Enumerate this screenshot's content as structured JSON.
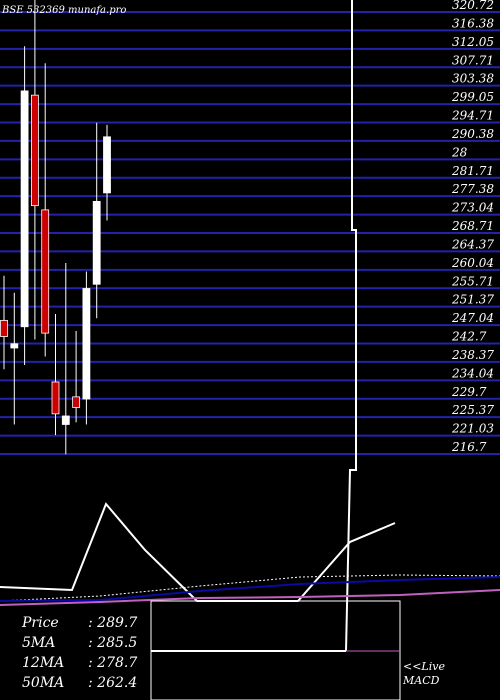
{
  "chart_data": [
    {
      "type": "candlestick",
      "title": "BSE 532369 munafa.pro",
      "price_levels": [
        "320.72",
        "316.38",
        "312.05",
        "307.71",
        "303.38",
        "299.05",
        "294.71",
        "290.38",
        "28",
        "281.71",
        "277.38",
        "273.04",
        "268.71",
        "264.37",
        "260.04",
        "255.71",
        "251.37",
        "247.04",
        "242.7",
        "238.37",
        "234.04",
        "229.7",
        "225.37",
        "221.03",
        "216.7"
      ],
      "ylim": [
        216.7,
        320.72
      ],
      "candles": [
        {
          "open": 242.7,
          "close": 246.5,
          "high": 257.0,
          "low": 235.0,
          "color": "red"
        },
        {
          "open": 241.0,
          "close": 240.0,
          "high": 253.0,
          "low": 222.0,
          "color": "white"
        },
        {
          "open": 245.0,
          "close": 300.5,
          "high": 311.0,
          "low": 236.0,
          "color": "white"
        },
        {
          "open": 299.5,
          "close": 273.5,
          "high": 331.0,
          "low": 242.0,
          "color": "red"
        },
        {
          "open": 272.5,
          "close": 243.5,
          "high": 307.0,
          "low": 238.0,
          "color": "red"
        },
        {
          "open": 232.0,
          "close": 224.5,
          "high": 248.0,
          "low": 219.5,
          "color": "red"
        },
        {
          "open": 222.0,
          "close": 224.0,
          "high": 260.0,
          "low": 215.0,
          "color": "white"
        },
        {
          "open": 228.5,
          "close": 226.0,
          "high": 244.0,
          "low": 222.5,
          "color": "red"
        },
        {
          "open": 228.0,
          "close": 254.0,
          "high": 258.0,
          "low": 222.0,
          "color": "white"
        },
        {
          "open": 255.0,
          "close": 274.5,
          "high": 293.0,
          "low": 247.0,
          "color": "white"
        },
        {
          "open": 276.5,
          "close": 289.7,
          "high": 292.5,
          "low": 270.0,
          "color": "white"
        }
      ]
    },
    {
      "type": "line",
      "panel": "indicators",
      "series": [
        {
          "name": "MACD",
          "color": "#ffffff",
          "points": [
            [
              0,
              587
            ],
            [
              72,
              590
            ],
            [
              106,
              504
            ],
            [
              145,
              550
            ],
            [
              197,
              601
            ],
            [
              298,
              601
            ],
            [
              350,
              542
            ],
            [
              395,
              523
            ]
          ]
        },
        {
          "color": "#ffffff",
          "dashed": true,
          "points": [
            [
              0,
              601
            ],
            [
              100,
              596
            ],
            [
              200,
              586
            ],
            [
              300,
              577
            ],
            [
              400,
              575
            ],
            [
              500,
              576
            ]
          ]
        },
        {
          "color": "#0a0aa0",
          "points": [
            [
              0,
              601
            ],
            [
              100,
              600
            ],
            [
              200,
              591
            ],
            [
              300,
              584
            ],
            [
              400,
              580
            ],
            [
              500,
              577
            ]
          ]
        },
        {
          "color": "#c060c0",
          "points": [
            [
              0,
              605
            ],
            [
              100,
              602
            ],
            [
              200,
              598
            ],
            [
              300,
              597
            ],
            [
              400,
              595
            ],
            [
              500,
              590
            ]
          ]
        }
      ]
    }
  ],
  "info": {
    "rows": [
      {
        "label": "Price",
        "value": ": 289.7"
      },
      {
        "label": "5MA",
        "value": ": 285.5"
      },
      {
        "label": "12MA",
        "value": ": 278.7"
      },
      {
        "label": "50MA",
        "value": ": 262.4"
      }
    ],
    "live_label": "<<Live",
    "macd_label": "MACD"
  },
  "colors": {
    "background": "#000000",
    "gridline": "#2222aa",
    "down": "#cc0000",
    "up": "#ffffff"
  }
}
